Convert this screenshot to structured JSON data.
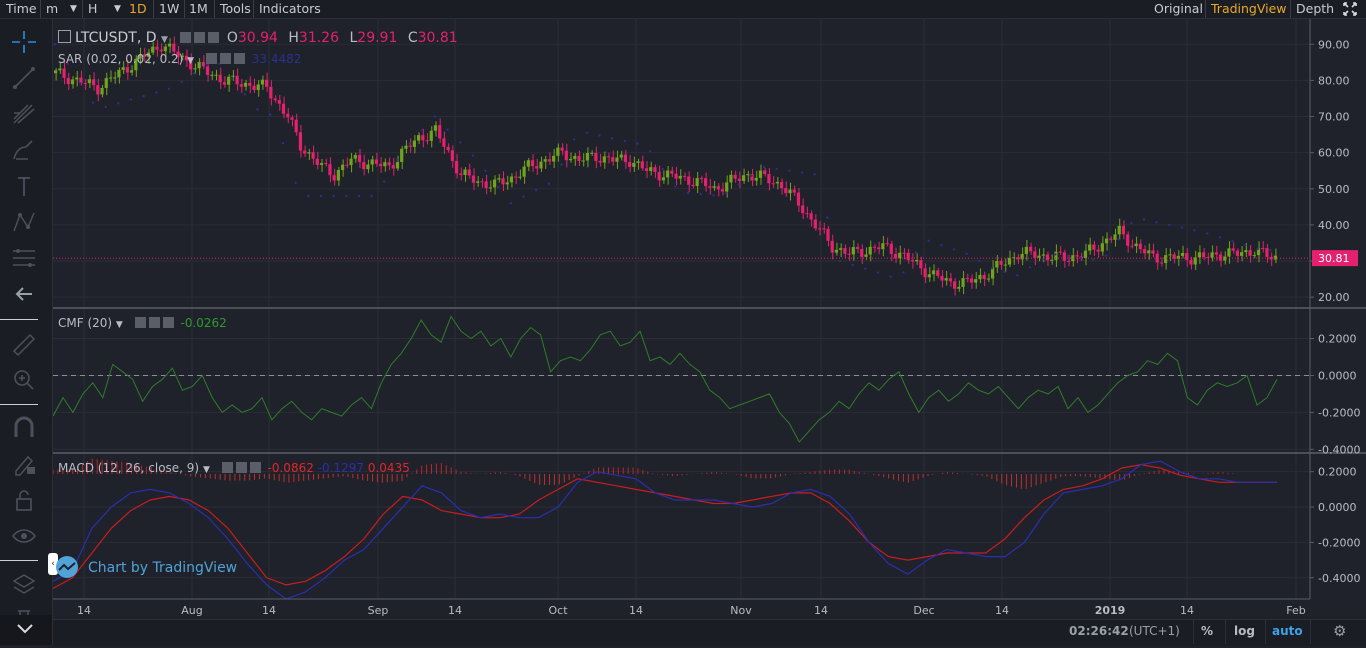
{
  "toolbar": {
    "time_label": "Time",
    "interval_m": "m",
    "interval_h": "H",
    "buttons": [
      "1D",
      "1W",
      "1M"
    ],
    "selected": "1D",
    "tools_label": "Tools",
    "indicators_label": "Indicators",
    "views": [
      "Original",
      "TradingView",
      "Depth"
    ],
    "selected_view": "TradingView"
  },
  "legend": {
    "symbol": "LTCUSDT, D",
    "o_label": "O",
    "o_value": "30.94",
    "h_label": "H",
    "h_value": "31.26",
    "l_label": "L",
    "l_value": "29.91",
    "c_label": "C",
    "c_value": "30.81",
    "sar_label": "SAR (0.02, 0.02, 0.2)",
    "sar_value": "33.4482",
    "cmf_label": "CMF (20)",
    "cmf_value": "-0.0262",
    "macd_label": "MACD (12, 26, close, 9)",
    "macd_v1": "-0.0862",
    "macd_v2": "-0.1297",
    "macd_v3": "0.0435"
  },
  "attribution": "Chart by TradingView",
  "status": {
    "time": "02:26:42",
    "tz": "(UTC+1)",
    "pct": "%",
    "log": "log",
    "auto": "auto"
  },
  "colors": {
    "up": "#6fa41c",
    "down": "#e3216f",
    "sar": "#2d2f8c",
    "cmf": "#2f7d2a",
    "macd": "#2a2fb0",
    "signal": "#c81e1e",
    "accent": "#e8a92a",
    "price_tag": "#e3216f"
  },
  "chart_data": [
    {
      "type": "candlestick",
      "title": "LTCUSDT, D",
      "ylim": [
        17,
        97
      ],
      "yticks": [
        "90.00",
        "80.00",
        "70.00",
        "60.00",
        "50.00",
        "40.00",
        "30.00",
        "20.00"
      ],
      "last_price": "30.81",
      "x_labels": [
        "14",
        "Aug",
        "14",
        "Sep",
        "14",
        "Oct",
        "14",
        "Nov",
        "14",
        "Dec",
        "14",
        "2019",
        "14",
        "Feb"
      ],
      "close_path": [
        [
          0,
          82
        ],
        [
          10,
          78
        ],
        [
          20,
          86
        ],
        [
          25,
          90
        ],
        [
          33,
          84
        ],
        [
          40,
          80
        ],
        [
          50,
          78
        ],
        [
          55,
          70
        ],
        [
          58,
          62
        ],
        [
          63,
          56
        ],
        [
          66,
          54
        ],
        [
          70,
          58
        ],
        [
          75,
          57
        ],
        [
          79,
          56
        ],
        [
          82,
          60
        ],
        [
          86,
          64
        ],
        [
          90,
          66
        ],
        [
          92,
          62
        ],
        [
          96,
          54
        ],
        [
          100,
          52
        ],
        [
          104,
          51
        ],
        [
          108,
          53
        ],
        [
          112,
          56
        ],
        [
          116,
          58
        ],
        [
          120,
          60
        ],
        [
          124,
          58
        ],
        [
          128,
          59
        ],
        [
          132,
          58
        ],
        [
          136,
          58
        ],
        [
          140,
          55
        ],
        [
          144,
          54
        ],
        [
          148,
          53
        ],
        [
          152,
          52
        ],
        [
          156,
          50
        ],
        [
          160,
          52
        ],
        [
          164,
          54
        ],
        [
          168,
          53
        ],
        [
          172,
          51
        ],
        [
          176,
          46
        ],
        [
          180,
          40
        ],
        [
          184,
          34
        ],
        [
          188,
          32
        ],
        [
          192,
          33
        ],
        [
          196,
          34
        ],
        [
          200,
          32
        ],
        [
          204,
          29
        ],
        [
          208,
          26
        ],
        [
          212,
          24
        ],
        [
          216,
          24
        ],
        [
          220,
          26
        ],
        [
          224,
          29
        ],
        [
          228,
          32
        ],
        [
          232,
          32
        ],
        [
          236,
          31
        ],
        [
          240,
          31
        ],
        [
          244,
          32
        ],
        [
          248,
          35
        ],
        [
          252,
          38
        ],
        [
          256,
          34
        ],
        [
          260,
          31
        ],
        [
          264,
          31
        ],
        [
          268,
          31
        ],
        [
          272,
          31
        ],
        [
          276,
          32
        ],
        [
          280,
          32
        ],
        [
          284,
          33
        ],
        [
          288,
          31
        ]
      ],
      "sar_points": [
        [
          0,
          90
        ],
        [
          10,
          72
        ],
        [
          28,
          78
        ],
        [
          38,
          86
        ],
        [
          48,
          72
        ],
        [
          52,
          70
        ],
        [
          58,
          48
        ],
        [
          76,
          48
        ],
        [
          82,
          60
        ],
        [
          90,
          70
        ],
        [
          100,
          58
        ],
        [
          108,
          46
        ],
        [
          118,
          52
        ],
        [
          124,
          66
        ],
        [
          140,
          62
        ],
        [
          148,
          49
        ],
        [
          158,
          48
        ],
        [
          168,
          56
        ],
        [
          180,
          54
        ],
        [
          186,
          30
        ],
        [
          200,
          25
        ],
        [
          206,
          36
        ],
        [
          216,
          32
        ],
        [
          222,
          28
        ],
        [
          228,
          26
        ],
        [
          236,
          32
        ],
        [
          248,
          30
        ],
        [
          256,
          42
        ],
        [
          272,
          38
        ],
        [
          286,
          33
        ]
      ]
    },
    {
      "type": "line",
      "title": "CMF (20)",
      "ylim": [
        -0.42,
        0.36
      ],
      "yticks": [
        "0.2000",
        "0.0000",
        "-0.2000",
        "-0.4000"
      ],
      "values": [
        -0.22,
        -0.12,
        -0.2,
        -0.1,
        -0.04,
        -0.12,
        0.06,
        0.02,
        -0.02,
        -0.14,
        -0.06,
        -0.02,
        0.04,
        -0.08,
        -0.06,
        0.0,
        -0.12,
        -0.2,
        -0.16,
        -0.2,
        -0.18,
        -0.12,
        -0.24,
        -0.18,
        -0.14,
        -0.2,
        -0.24,
        -0.18,
        -0.2,
        -0.22,
        -0.16,
        -0.12,
        -0.18,
        -0.04,
        0.06,
        0.12,
        0.2,
        0.3,
        0.22,
        0.18,
        0.32,
        0.24,
        0.2,
        0.24,
        0.16,
        0.2,
        0.1,
        0.2,
        0.26,
        0.22,
        0.02,
        0.08,
        0.1,
        0.08,
        0.14,
        0.22,
        0.24,
        0.16,
        0.18,
        0.24,
        0.08,
        0.1,
        0.06,
        0.12,
        0.06,
        0.02,
        -0.08,
        -0.12,
        -0.18,
        -0.16,
        -0.14,
        -0.12,
        -0.1,
        -0.2,
        -0.26,
        -0.36,
        -0.3,
        -0.24,
        -0.2,
        -0.14,
        -0.18,
        -0.1,
        -0.04,
        -0.08,
        -0.02,
        0.02,
        -0.1,
        -0.2,
        -0.12,
        -0.08,
        -0.14,
        -0.1,
        -0.04,
        -0.08,
        -0.1,
        -0.06,
        -0.12,
        -0.18,
        -0.12,
        -0.08,
        -0.1,
        -0.06,
        -0.18,
        -0.12,
        -0.2,
        -0.16,
        -0.1,
        -0.04,
        0.0,
        0.02,
        0.08,
        0.06,
        0.12,
        0.08,
        -0.12,
        -0.16,
        -0.08,
        -0.04,
        -0.06,
        -0.04,
        0.0,
        -0.16,
        -0.12,
        -0.02
      ]
    },
    {
      "type": "line",
      "title": "MACD (12, 26, close, 9)",
      "ylim": [
        -0.52,
        0.3
      ],
      "yticks": [
        "0.2000",
        "0.0000",
        "-0.2000",
        "-0.4000"
      ],
      "series": [
        {
          "values": [
            -0.42,
            -0.36,
            -0.12,
            0.0,
            0.08,
            0.1,
            0.08,
            0.02,
            -0.06,
            -0.18,
            -0.32,
            -0.44,
            -0.52,
            -0.48,
            -0.4,
            -0.3,
            -0.24,
            -0.12,
            0.0,
            0.12,
            0.08,
            -0.02,
            -0.06,
            -0.04,
            -0.06,
            -0.06,
            0.0,
            0.14,
            0.2,
            0.18,
            0.16,
            0.08,
            0.04,
            0.04,
            0.04,
            0.02,
            0.0,
            0.02,
            0.08,
            0.1,
            0.06,
            -0.04,
            -0.2,
            -0.32,
            -0.38,
            -0.3,
            -0.24,
            -0.26,
            -0.28,
            -0.28,
            -0.2,
            -0.04,
            0.08,
            0.1,
            0.12,
            0.16,
            0.24,
            0.26,
            0.2,
            0.16,
            0.16,
            0.14,
            0.14,
            0.14
          ]
        },
        {
          "values": [
            -0.46,
            -0.4,
            -0.26,
            -0.12,
            -0.02,
            0.04,
            0.06,
            0.04,
            -0.02,
            -0.12,
            -0.26,
            -0.4,
            -0.44,
            -0.42,
            -0.36,
            -0.28,
            -0.18,
            -0.04,
            0.06,
            0.04,
            -0.02,
            -0.04,
            -0.06,
            -0.06,
            -0.04,
            0.04,
            0.1,
            0.16,
            0.14,
            0.12,
            0.1,
            0.08,
            0.06,
            0.04,
            0.02,
            0.02,
            0.04,
            0.06,
            0.08,
            0.08,
            0.02,
            -0.08,
            -0.2,
            -0.28,
            -0.3,
            -0.28,
            -0.26,
            -0.26,
            -0.26,
            -0.18,
            -0.06,
            0.04,
            0.1,
            0.12,
            0.16,
            0.22,
            0.24,
            0.22,
            0.18,
            0.16,
            0.14,
            0.14,
            0.14,
            0.14
          ]
        }
      ]
    }
  ]
}
